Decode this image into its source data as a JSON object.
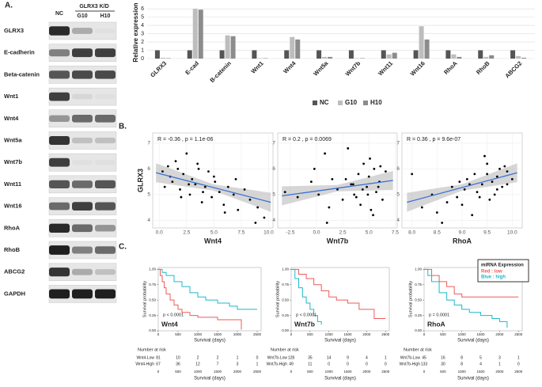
{
  "panel_a": {
    "label": "A.",
    "group": "GLRX3 K/D",
    "columns": [
      "NC",
      "G10",
      "H10"
    ],
    "rows": [
      "GLRX3",
      "E-cadherin",
      "Beta-catenin",
      "Wnt1",
      "Wnt4",
      "Wnt5a",
      "Wnt7b",
      "Wnt11",
      "Wnt16",
      "RhoA",
      "RhoB",
      "ABCG2",
      "GAPDH"
    ]
  },
  "panel_b_label": "B.",
  "panel_c_label": "C.",
  "chart_data": [
    {
      "type": "bar",
      "ylabel": "Relative expression",
      "categories": [
        "GLRX3",
        "E-cad",
        "B-catenin",
        "Wnt1",
        "Wnt4",
        "Wnt5a",
        "Wnt7b",
        "Wnt11",
        "Wnt16",
        "RhoA",
        "RhoB",
        "ABCG2"
      ],
      "series": [
        {
          "name": "NC",
          "color": "#555555",
          "values": [
            1,
            1,
            1,
            1,
            1,
            1,
            1,
            1,
            1,
            1,
            1,
            1
          ]
        },
        {
          "name": "G10",
          "color": "#bdbdbd",
          "values": [
            0.1,
            6,
            2.8,
            0.05,
            2.6,
            0.2,
            0.05,
            0.5,
            3.9,
            0.5,
            0.2,
            0.3
          ]
        },
        {
          "name": "H10",
          "color": "#8c8c8c",
          "values": [
            0.05,
            5.9,
            2.7,
            0.05,
            2.3,
            0.2,
            0.05,
            0.7,
            2.3,
            0.2,
            0.4,
            0.1
          ]
        }
      ],
      "ylim": [
        0,
        6.3
      ],
      "yticks": [
        0,
        1,
        2,
        3,
        4,
        5,
        6
      ],
      "grid": true,
      "legend": "bottom"
    },
    {
      "type": "scatter",
      "ylabel": "GLRX3",
      "xlabel": "Wnt4",
      "annotation": "R = -0.36 , p = 1.1e-06",
      "color": "#000000",
      "trend_color": "#3a6fd8",
      "x": [
        0.3,
        0.8,
        1.2,
        1.5,
        1.9,
        2.2,
        2.5,
        2.8,
        3.0,
        3.3,
        3.6,
        3.9,
        4.2,
        4.5,
        4.8,
        5.1,
        5.5,
        5.9,
        6.3,
        6.8,
        7.2,
        7.8,
        8.3,
        9.0,
        9.6,
        1.0,
        2.0,
        3.5,
        4.0,
        5.0,
        6.0,
        2.7,
        1.7,
        0.5,
        7.0,
        8.8
      ],
      "values": [
        5.9,
        6.1,
        5.5,
        6.3,
        5.2,
        5.8,
        6.6,
        5.0,
        5.6,
        5.4,
        6.0,
        4.7,
        5.3,
        5.9,
        4.9,
        5.5,
        5.1,
        4.6,
        5.3,
        5.0,
        4.4,
        5.2,
        4.8,
        4.5,
        4.1,
        5.7,
        4.9,
        6.2,
        5.1,
        5.7,
        4.3,
        5.4,
        6.0,
        5.3,
        5.6,
        3.9
      ],
      "trend": {
        "x": [
          -0.3,
          10.2
        ],
        "values": [
          5.85,
          4.7
        ]
      },
      "xlim": [
        -0.6,
        10.4
      ],
      "xticks": [
        {
          "value": 0,
          "label": "0.0"
        },
        2.5,
        {
          "value": 5,
          "label": "5.0"
        },
        7.5,
        {
          "value": 10,
          "label": "10.0"
        }
      ],
      "ylim": [
        3.7,
        7.4
      ],
      "yticks": [
        4,
        5,
        6,
        7
      ],
      "grid": true
    },
    {
      "type": "scatter",
      "xlabel": "Wnt7b",
      "annotation": "R = 0.2 , p = 0.0069",
      "color": "#000000",
      "trend_color": "#3a6fd8",
      "x": [
        -3.0,
        -1.8,
        -0.5,
        0.2,
        1.0,
        1.5,
        2.0,
        2.5,
        3.0,
        3.3,
        3.6,
        4.0,
        4.2,
        4.5,
        4.8,
        5.0,
        5.2,
        5.5,
        5.7,
        6.0,
        6.3,
        6.6,
        2.8,
        3.8,
        4.4,
        5.1,
        5.9,
        1.2,
        0.8,
        4.9,
        5.4,
        6.1,
        3.5,
        -0.2
      ],
      "values": [
        5.1,
        4.9,
        5.5,
        5.0,
        3.9,
        5.6,
        5.2,
        4.8,
        6.8,
        5.4,
        5.0,
        5.8,
        4.6,
        6.2,
        5.3,
        5.7,
        4.4,
        6.0,
        5.1,
        5.5,
        4.8,
        5.9,
        5.6,
        4.9,
        5.2,
        6.4,
        5.3,
        4.5,
        6.6,
        5.0,
        4.2,
        6.1,
        5.4,
        6.0
      ],
      "trend": {
        "x": [
          -3.3,
          7.3
        ],
        "values": [
          4.95,
          5.55
        ]
      },
      "xlim": [
        -3.7,
        7.7
      ],
      "xticks": [
        -2.5,
        {
          "value": 0,
          "label": "0.0"
        },
        2.5,
        {
          "value": 5,
          "label": "5.0"
        },
        7.5
      ],
      "ylim": [
        3.7,
        7.4
      ],
      "yticks": [
        4,
        5,
        6,
        7
      ],
      "grid": true
    },
    {
      "type": "scatter",
      "xlabel": "RhoA",
      "annotation": "R = 0.36 , p = 9.6e-07",
      "color": "#000000",
      "trend_color": "#3a6fd8",
      "x": [
        8.0,
        8.2,
        8.4,
        8.6,
        8.8,
        8.9,
        9.0,
        9.1,
        9.2,
        9.3,
        9.4,
        9.5,
        9.55,
        9.6,
        9.7,
        9.75,
        9.8,
        9.9,
        10.0,
        8.5,
        8.7,
        9.05,
        9.25,
        9.45,
        9.65,
        9.85,
        9.15,
        9.35,
        8.95,
        9.7,
        9.5,
        9.9
      ],
      "values": [
        5.8,
        4.5,
        5.0,
        3.9,
        5.3,
        4.9,
        4.6,
        5.6,
        4.2,
        5.1,
        5.4,
        6.2,
        4.8,
        5.5,
        5.7,
        6.0,
        5.3,
        5.9,
        5.6,
        4.3,
        4.7,
        5.2,
        5.8,
        6.5,
        5.0,
        6.1,
        5.4,
        4.9,
        5.5,
        5.2,
        5.8,
        5.4
      ],
      "trend": {
        "x": [
          7.9,
          10.1
        ],
        "values": [
          4.7,
          5.85
        ]
      },
      "xlim": [
        7.8,
        10.2
      ],
      "xticks": [
        {
          "value": 8,
          "label": "8.0"
        },
        8.5,
        {
          "value": 9,
          "label": "9.0"
        },
        9.5,
        {
          "value": 10,
          "label": "10.0"
        }
      ],
      "ylim": [
        3.7,
        7.4
      ],
      "yticks": [
        4,
        5,
        6,
        7
      ],
      "grid": true
    },
    {
      "type": "line",
      "step": true,
      "ylabel": "Survival probability",
      "xlabel": "Survival (days)",
      "annotation": "p < 0.0001",
      "label": "Wnt4",
      "risk_title": "Number at risk",
      "series": [
        {
          "name": "Wnt4-Low",
          "color": "#f05a5a",
          "x": [
            0,
            50,
            100,
            150,
            200,
            300,
            400,
            500,
            600,
            800,
            1000,
            1500,
            2000,
            2100
          ],
          "values": [
            1,
            0.9,
            0.8,
            0.7,
            0.6,
            0.5,
            0.42,
            0.35,
            0.3,
            0.25,
            0.22,
            0.18,
            0.18,
            0.02
          ],
          "risk": [
            81,
            10,
            2,
            2,
            1,
            0
          ]
        },
        {
          "name": "Wnt4-High",
          "color": "#1fb8c9",
          "x": [
            0,
            100,
            200,
            400,
            600,
            800,
            1000,
            1200,
            1500,
            1800,
            2000,
            2500
          ],
          "values": [
            1,
            0.95,
            0.9,
            0.8,
            0.72,
            0.62,
            0.55,
            0.5,
            0.45,
            0.4,
            0.35,
            0.35
          ],
          "risk": [
            67,
            36,
            12,
            7,
            3,
            1
          ]
        }
      ],
      "xlim": [
        0,
        2600
      ],
      "xticks": [
        0,
        500,
        1000,
        1500,
        2000,
        2500
      ],
      "ylim": [
        0,
        1.03
      ],
      "yticks": [
        {
          "value": 0,
          "label": "0.00"
        },
        {
          "value": 0.25,
          "label": "0.25"
        },
        {
          "value": 0.5,
          "label": "0.50"
        },
        {
          "value": 0.75,
          "label": "0.75"
        },
        {
          "value": 1,
          "label": "1.00"
        }
      ]
    },
    {
      "type": "line",
      "step": true,
      "ylabel": "Survival probability",
      "xlabel": "Survival (days)",
      "annotation": "p < 0.0001",
      "label": "Wnt7b",
      "risk_title": "Number at risk",
      "series": [
        {
          "name": "Wnt7b-Low",
          "color": "#f05a5a",
          "x": [
            0,
            200,
            400,
            600,
            800,
            1000,
            1200,
            1500,
            1800,
            2200,
            2500
          ],
          "values": [
            1,
            0.92,
            0.85,
            0.75,
            0.65,
            0.55,
            0.5,
            0.45,
            0.35,
            0.2,
            0.2
          ],
          "risk": [
            128,
            35,
            14,
            9,
            4,
            1
          ]
        },
        {
          "name": "Wnt7b-High",
          "color": "#1fb8c9",
          "x": [
            0,
            100,
            200,
            300,
            400,
            500,
            600,
            700,
            800
          ],
          "values": [
            1,
            0.85,
            0.7,
            0.55,
            0.45,
            0.35,
            0.25,
            0.15,
            0.1
          ],
          "risk": [
            49,
            11,
            0,
            0,
            0,
            0
          ]
        }
      ],
      "xlim": [
        0,
        2600
      ],
      "xticks": [
        0,
        500,
        1000,
        1500,
        2000,
        2500
      ],
      "ylim": [
        0,
        1.03
      ],
      "yticks": [
        {
          "value": 0,
          "label": "0.00"
        },
        {
          "value": 0.25,
          "label": "0.25"
        },
        {
          "value": 0.5,
          "label": "0.50"
        },
        {
          "value": 0.75,
          "label": "0.75"
        },
        {
          "value": 1,
          "label": "1.00"
        }
      ]
    },
    {
      "type": "line",
      "step": true,
      "ylabel": "Survival probability",
      "xlabel": "Survival (days)",
      "annotation": "p = 0.0001",
      "label": "RhoA",
      "risk_title": "Number at risk",
      "legend_title": "miRNA Expression",
      "legend_items": [
        "Red : low",
        "Blue : high"
      ],
      "series": [
        {
          "name": "Wnt7b-Low",
          "color": "#f05a5a",
          "x": [
            0,
            200,
            400,
            600,
            800,
            1000,
            1500,
            2500
          ],
          "values": [
            1,
            0.9,
            0.8,
            0.72,
            0.6,
            0.55,
            0.55,
            0.55
          ],
          "risk": [
            45,
            16,
            8,
            5,
            3,
            1
          ]
        },
        {
          "name": "Wnt7b-High",
          "color": "#1fb8c9",
          "x": [
            0,
            100,
            200,
            400,
            600,
            800,
            1000,
            1200,
            1500,
            1800,
            2000,
            2200
          ],
          "values": [
            1,
            0.9,
            0.8,
            0.62,
            0.5,
            0.42,
            0.35,
            0.3,
            0.25,
            0.2,
            0.15,
            0.05
          ],
          "risk": [
            133,
            30,
            8,
            4,
            1,
            0
          ]
        }
      ],
      "xlim": [
        0,
        2600
      ],
      "xticks": [
        0,
        500,
        1000,
        1500,
        2000,
        2500
      ],
      "ylim": [
        0,
        1.03
      ],
      "yticks": [
        {
          "value": 0,
          "label": "0.00"
        },
        {
          "value": 0.25,
          "label": "0.25"
        },
        {
          "value": 0.5,
          "label": "0.50"
        },
        {
          "value": 0.75,
          "label": "0.75"
        },
        {
          "value": 1,
          "label": "1.00"
        }
      ]
    }
  ]
}
